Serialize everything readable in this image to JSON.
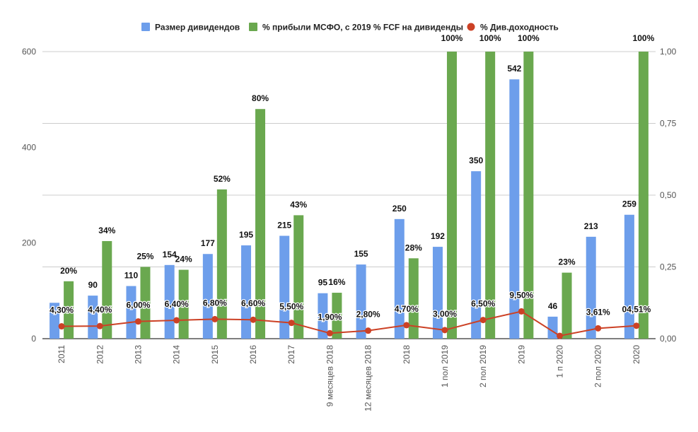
{
  "chart_data": {
    "type": "bar+line",
    "title": "",
    "legend_position": "top",
    "legend": [
      {
        "key": "dividends",
        "label": "Размер дивидендов",
        "color": "#6d9eeb",
        "shape": "square"
      },
      {
        "key": "payout",
        "label": "% прибыли МСФО, с 2019 % FCF на дивиденды",
        "color": "#6aa84f",
        "shape": "square"
      },
      {
        "key": "yield",
        "label": "% Див.доходность",
        "color": "#cc4125",
        "shape": "circle"
      }
    ],
    "categories": [
      "2011",
      "2012",
      "2013",
      "2014",
      "2015",
      "2016",
      "2017",
      "9 месяцев 2018",
      "12 месяцев 2018",
      "2018",
      "1 пол 2019",
      "2 пол 2019",
      "2019",
      "1 п 2020",
      "2 пол 2020",
      "2020"
    ],
    "y_left": {
      "min": 0,
      "max": 600,
      "ticks": [
        "0",
        "200",
        "400",
        "600"
      ],
      "tick_values": [
        0,
        200,
        400,
        600
      ]
    },
    "y_right": {
      "min": 0,
      "max": 1,
      "ticks": [
        "0,00",
        "0,25",
        "0,50",
        "0,75",
        "1,00"
      ],
      "tick_values": [
        0,
        0.25,
        0.5,
        0.75,
        1
      ]
    },
    "grid": true,
    "series": [
      {
        "name": "Размер дивидендов",
        "key": "dividends",
        "type": "bar",
        "axis": "left",
        "color": "#6d9eeb",
        "values": [
          75,
          90,
          110,
          154,
          177,
          195,
          215,
          95,
          155,
          250,
          192,
          350,
          542,
          46,
          213,
          259
        ],
        "labels": [
          "",
          "90",
          "110",
          "154",
          "177",
          "195",
          "215",
          "95",
          "155",
          "250",
          "192",
          "350",
          "542",
          "46",
          "213",
          "259"
        ]
      },
      {
        "name": "% прибыли МСФО, с 2019 % FCF на дивиденды",
        "key": "payout",
        "type": "bar",
        "axis": "right",
        "color": "#6aa84f",
        "values": [
          0.2,
          0.34,
          0.25,
          0.24,
          0.52,
          0.8,
          0.43,
          0.16,
          null,
          0.28,
          1.0,
          1.0,
          1.0,
          0.23,
          null,
          1.0
        ],
        "labels": [
          "20%",
          "34%",
          "25%",
          "24%",
          "52%",
          "80%",
          "43%",
          "16%",
          "",
          "28%",
          "100%",
          "100%",
          "100%",
          "23%",
          "",
          "100%"
        ]
      },
      {
        "name": "% Див.доходность",
        "key": "yield",
        "type": "line",
        "axis": "right",
        "color": "#cc4125",
        "values": [
          0.043,
          0.044,
          0.06,
          0.064,
          0.068,
          0.066,
          0.055,
          0.019,
          0.028,
          0.047,
          0.03,
          0.065,
          0.095,
          0.01,
          0.0361,
          0.0451
        ],
        "labels": [
          "4,30%",
          "4,40%",
          "6,00%",
          "6,40%",
          "6,80%",
          "6,60%",
          "5,50%",
          "1,90%",
          "2,80%",
          "4,70%",
          "3,00%",
          "6,50%",
          "9,50%",
          "",
          "3,61%",
          "04,51%"
        ]
      }
    ]
  }
}
